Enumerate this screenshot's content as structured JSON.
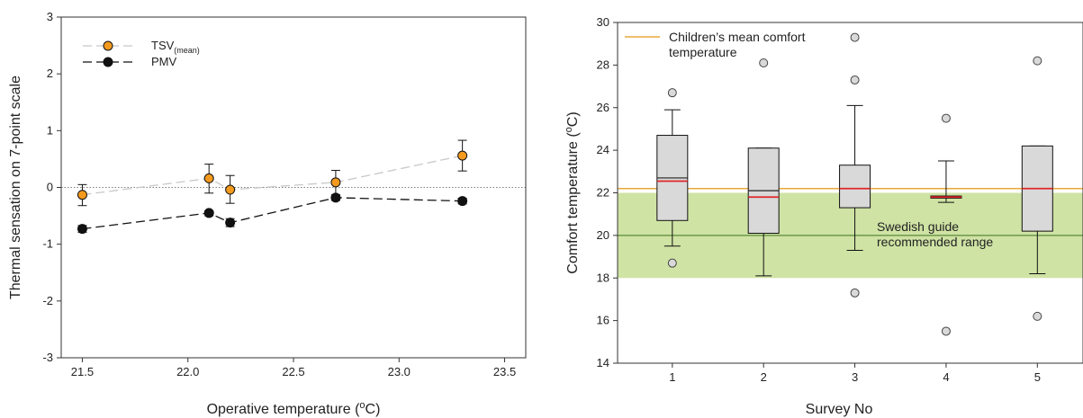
{
  "chart_data": [
    {
      "type": "scatter",
      "xlabel": {
        "prefix": "Operative temperature (",
        "sup": "o",
        "suffix": "C)"
      },
      "ylabel": "Thermal sensation on 7-point scale",
      "xlim": [
        21.4,
        23.6
      ],
      "ylim": [
        -3,
        3
      ],
      "xticks": [
        "21.5",
        "22.0",
        "22.5",
        "23.0",
        "23.5"
      ],
      "yticks": [
        "-3",
        "-2",
        "-1",
        "0",
        "1",
        "2",
        "3"
      ],
      "reference_line": {
        "y": 0,
        "style": "dotted"
      },
      "legend": {
        "position": "top-left",
        "entries": [
          {
            "main": "TSV",
            "sub": "(mean)",
            "color": "#f39a1e",
            "line": "#c8c8c8"
          },
          {
            "main": "PMV",
            "sub": "",
            "color": "#111111",
            "line": "#111111"
          }
        ]
      },
      "series": [
        {
          "name": "TSV(mean)",
          "color": "#f39a1e",
          "line_color": "#c8c8c8",
          "points": [
            {
              "x": 21.5,
              "y": -0.13,
              "lo": -0.32,
              "hi": 0.05
            },
            {
              "x": 22.1,
              "y": 0.16,
              "lo": -0.1,
              "hi": 0.41
            },
            {
              "x": 22.2,
              "y": -0.04,
              "lo": -0.28,
              "hi": 0.21
            },
            {
              "x": 22.7,
              "y": 0.09,
              "lo": -0.13,
              "hi": 0.3
            },
            {
              "x": 23.3,
              "y": 0.56,
              "lo": 0.29,
              "hi": 0.83
            }
          ]
        },
        {
          "name": "PMV",
          "color": "#111111",
          "line_color": "#111111",
          "points": [
            {
              "x": 21.5,
              "y": -0.73,
              "lo": -0.79,
              "hi": -0.67
            },
            {
              "x": 22.1,
              "y": -0.45,
              "lo": -0.5,
              "hi": -0.41
            },
            {
              "x": 22.2,
              "y": -0.62,
              "lo": -0.69,
              "hi": -0.55
            },
            {
              "x": 22.7,
              "y": -0.18,
              "lo": -0.23,
              "hi": -0.13
            },
            {
              "x": 23.3,
              "y": -0.24,
              "lo": -0.29,
              "hi": -0.19
            }
          ]
        }
      ]
    },
    {
      "type": "box",
      "xlabel": "Survey No",
      "ylabel": {
        "prefix": "Comfort temperature (",
        "sup": "o",
        "suffix": "C)"
      },
      "xlim": [
        0.4,
        5.5
      ],
      "ylim": [
        14,
        30
      ],
      "categories": [
        "1",
        "2",
        "3",
        "4",
        "5"
      ],
      "yticks": [
        "14",
        "16",
        "18",
        "20",
        "22",
        "24",
        "26",
        "28",
        "30"
      ],
      "box_color": "#d9d9d9",
      "median_color": "#222222",
      "mean_color": "#e0262a",
      "boxes": [
        {
          "min": 19.5,
          "q1": 20.7,
          "median": 22.7,
          "mean": 22.55,
          "q3": 24.7,
          "max": 25.9,
          "outliers": [
            26.7,
            18.7
          ]
        },
        {
          "min": 18.1,
          "q1": 20.1,
          "median": 22.1,
          "mean": 21.8,
          "q3": 24.1,
          "max": 24.1,
          "outliers": [
            28.1
          ]
        },
        {
          "min": 19.3,
          "q1": 21.3,
          "median": 22.2,
          "mean": 22.2,
          "q3": 23.3,
          "max": 26.1,
          "outliers": [
            29.3,
            27.3,
            17.3
          ]
        },
        {
          "min": 21.55,
          "q1": 21.75,
          "median": 21.8,
          "mean": 21.8,
          "q3": 21.85,
          "max": 23.5,
          "outliers": [
            25.5,
            15.5
          ]
        },
        {
          "min": 18.2,
          "q1": 20.2,
          "median": 22.2,
          "mean": 22.2,
          "q3": 24.2,
          "max": 24.2,
          "outliers": [
            28.2,
            16.2
          ]
        }
      ],
      "comfort_line": {
        "y": 22.2,
        "color": "#e8a838",
        "label": "Children’s mean comfort temperature",
        "label_lines": [
          "Children’s mean comfort",
          "temperature"
        ]
      },
      "recommended_range": {
        "y0": 18,
        "y1": 22,
        "center": 20,
        "fill": "#cfe3a4",
        "line_color": "#5a8a3a",
        "label_lines": [
          "Swedish guide",
          "recommended range"
        ]
      }
    }
  ]
}
